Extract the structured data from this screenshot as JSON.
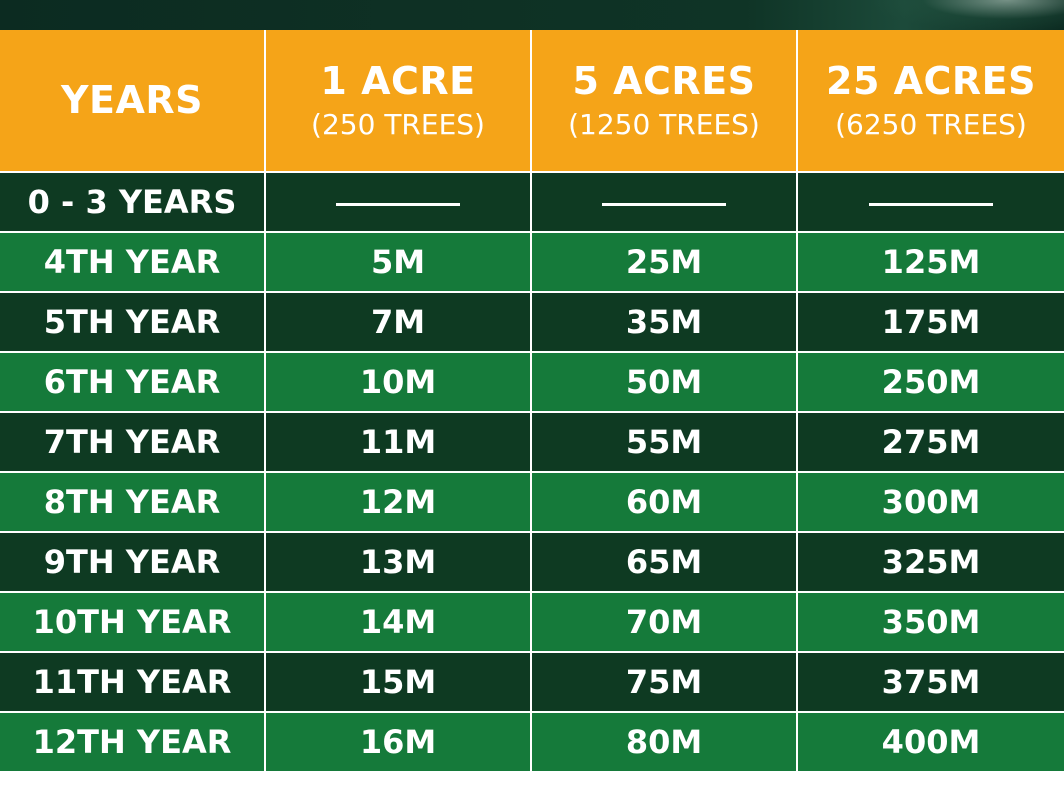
{
  "table": {
    "headers": [
      {
        "main": "YEARS",
        "sub": ""
      },
      {
        "main": "1 ACRE",
        "sub": "(250 TREES)"
      },
      {
        "main": "5 ACRES",
        "sub": "(1250 TREES)"
      },
      {
        "main": "25 ACRES",
        "sub": "(6250 TREES)"
      }
    ],
    "rows": [
      {
        "year": "0 - 3 YEARS",
        "acre1": "",
        "acre5": "",
        "acre25": "",
        "empty": true
      },
      {
        "year": "4TH YEAR",
        "acre1": "5M",
        "acre5": "25M",
        "acre25": "125M"
      },
      {
        "year": "5TH YEAR",
        "acre1": "7M",
        "acre5": "35M",
        "acre25": "175M"
      },
      {
        "year": "6TH YEAR",
        "acre1": "10M",
        "acre5": "50M",
        "acre25": "250M"
      },
      {
        "year": "7TH YEAR",
        "acre1": "11M",
        "acre5": "55M",
        "acre25": "275M"
      },
      {
        "year": "8TH YEAR",
        "acre1": "12M",
        "acre5": "60M",
        "acre25": "300M"
      },
      {
        "year": "9TH YEAR",
        "acre1": "13M",
        "acre5": "65M",
        "acre25": "325M"
      },
      {
        "year": "10TH YEAR",
        "acre1": "14M",
        "acre5": "70M",
        "acre25": "350M"
      },
      {
        "year": "11TH YEAR",
        "acre1": "15M",
        "acre5": "75M",
        "acre25": "375M"
      },
      {
        "year": "12TH YEAR",
        "acre1": "16M",
        "acre5": "80M",
        "acre25": "400M"
      }
    ]
  },
  "colors": {
    "header_bg": "#f5a418",
    "row_dark": "#0e3a22",
    "row_light": "#157a3a",
    "top_band": "#0c2b21",
    "text": "#ffffff"
  }
}
